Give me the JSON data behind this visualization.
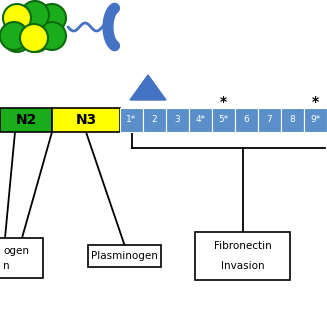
{
  "bg_color": "#ffffff",
  "green_color": "#1aac1a",
  "yellow_color": "#ffff00",
  "blue_color": "#5b8fc9",
  "dark_blue_color": "#4472c4",
  "outline_color": "#0d6b0d",
  "n2_label": "N2",
  "n3_label": "N3",
  "repeat_labels": [
    "1*",
    "2",
    "3",
    "4*",
    "5*",
    "6",
    "7",
    "8",
    "9*"
  ],
  "star_above_indices": [
    4,
    8
  ],
  "fig_w": 3.27,
  "fig_h": 3.27,
  "dpi": 100
}
